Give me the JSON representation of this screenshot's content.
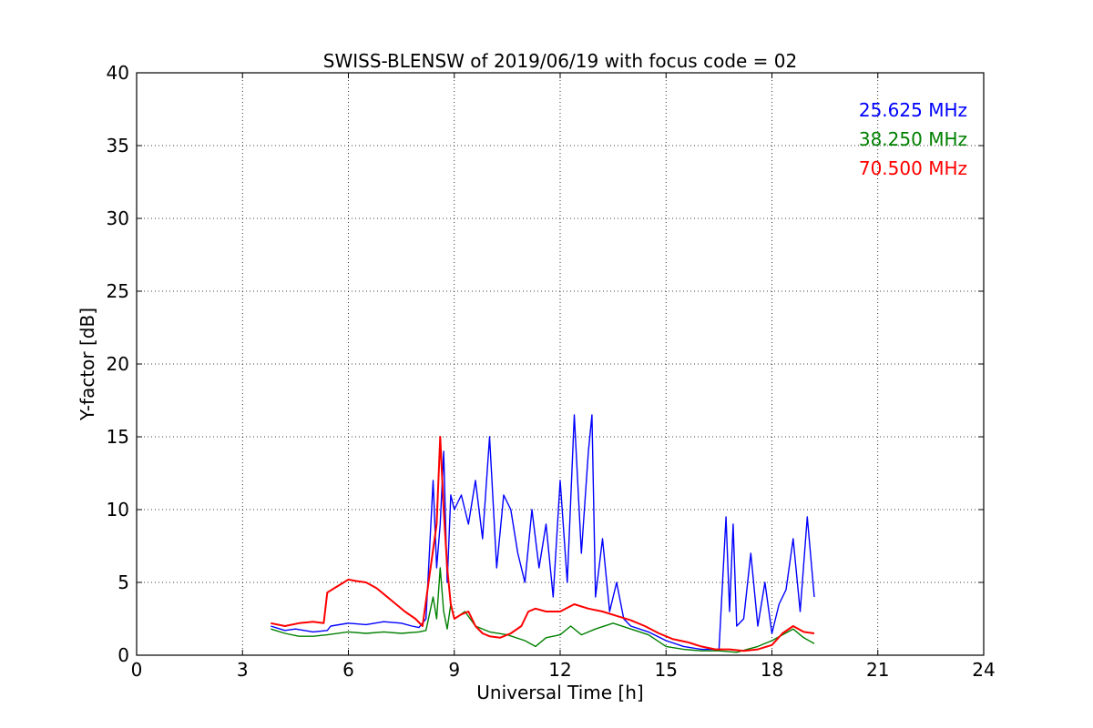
{
  "chart_data": {
    "type": "line",
    "title": "SWISS-BLENSW of 2019/06/19 with focus code = 02",
    "xlabel": "Universal Time [h]",
    "ylabel": "Y-factor [dB]",
    "xlim": [
      0,
      24
    ],
    "ylim": [
      0,
      40
    ],
    "xticks": [
      0,
      3,
      6,
      9,
      12,
      15,
      18,
      21,
      24
    ],
    "xtick_labels": [
      "0",
      "3",
      "6",
      "9",
      "12",
      "15",
      "18",
      "21",
      "24"
    ],
    "yticks": [
      0,
      5,
      10,
      15,
      20,
      25,
      30,
      35,
      40
    ],
    "ytick_labels": [
      "0",
      "5",
      "10",
      "15",
      "20",
      "25",
      "30",
      "35",
      "40"
    ],
    "grid": true,
    "legend_position": "top-right",
    "series": [
      {
        "name": "25.625 MHz",
        "color": "#0000ff",
        "x": [
          3.8,
          4.2,
          4.5,
          5.0,
          5.4,
          5.5,
          6.0,
          6.5,
          7.0,
          7.5,
          7.8,
          8.0,
          8.2,
          8.4,
          8.5,
          8.6,
          8.7,
          8.8,
          8.9,
          9.0,
          9.2,
          9.4,
          9.6,
          9.8,
          10.0,
          10.2,
          10.4,
          10.6,
          10.8,
          11.0,
          11.2,
          11.4,
          11.6,
          11.8,
          12.0,
          12.2,
          12.4,
          12.6,
          12.8,
          12.9,
          13.0,
          13.2,
          13.4,
          13.6,
          13.8,
          14.0,
          14.5,
          15.0,
          15.5,
          16.0,
          16.5,
          16.7,
          16.8,
          16.9,
          17.0,
          17.2,
          17.4,
          17.6,
          17.8,
          18.0,
          18.2,
          18.4,
          18.6,
          18.8,
          19.0,
          19.2
        ],
        "y": [
          2.0,
          1.7,
          1.8,
          1.6,
          1.7,
          2.0,
          2.2,
          2.1,
          2.3,
          2.2,
          2.0,
          1.9,
          2.5,
          12.0,
          6.0,
          9.0,
          14.0,
          5.0,
          11.0,
          10.0,
          11.0,
          9.0,
          12.0,
          8.0,
          15.0,
          6.0,
          11.0,
          10.0,
          7.0,
          5.0,
          10.0,
          6.0,
          9.0,
          4.0,
          12.0,
          5.0,
          16.5,
          7.0,
          14.0,
          16.5,
          4.0,
          8.0,
          3.0,
          5.0,
          2.5,
          2.0,
          1.6,
          1.0,
          0.6,
          0.4,
          0.4,
          9.5,
          3.0,
          9.0,
          2.0,
          2.5,
          7.0,
          2.0,
          5.0,
          1.5,
          3.5,
          4.5,
          8.0,
          3.0,
          9.5,
          4.0
        ]
      },
      {
        "name": "38.250 MHz",
        "color": "#008000",
        "x": [
          3.8,
          4.2,
          4.6,
          5.0,
          5.4,
          6.0,
          6.5,
          7.0,
          7.5,
          8.0,
          8.2,
          8.4,
          8.5,
          8.6,
          8.7,
          8.8,
          8.9,
          9.0,
          9.3,
          9.6,
          10.0,
          10.5,
          11.0,
          11.3,
          11.6,
          12.0,
          12.3,
          12.6,
          13.0,
          13.5,
          14.0,
          14.5,
          15.0,
          15.5,
          16.0,
          16.5,
          17.0,
          17.3,
          17.6,
          18.0,
          18.3,
          18.6,
          18.9,
          19.2
        ],
        "y": [
          1.8,
          1.5,
          1.3,
          1.3,
          1.4,
          1.6,
          1.5,
          1.6,
          1.5,
          1.6,
          1.7,
          4.0,
          2.5,
          6.0,
          3.0,
          1.8,
          3.5,
          2.5,
          3.0,
          2.0,
          1.6,
          1.4,
          1.0,
          0.6,
          1.2,
          1.4,
          2.0,
          1.4,
          1.8,
          2.2,
          1.8,
          1.4,
          0.6,
          0.4,
          0.3,
          0.3,
          0.2,
          0.4,
          0.6,
          1.0,
          1.4,
          1.8,
          1.2,
          0.8
        ]
      },
      {
        "name": "70.500 MHz",
        "color": "#ff0000",
        "x": [
          3.8,
          4.2,
          4.6,
          5.0,
          5.3,
          5.4,
          5.6,
          5.8,
          6.0,
          6.2,
          6.5,
          6.8,
          7.0,
          7.3,
          7.6,
          7.9,
          8.1,
          8.3,
          8.5,
          8.6,
          8.7,
          8.8,
          8.9,
          9.0,
          9.2,
          9.4,
          9.6,
          9.8,
          10.0,
          10.3,
          10.6,
          10.9,
          11.1,
          11.3,
          11.6,
          12.0,
          12.4,
          12.8,
          13.2,
          13.6,
          14.0,
          14.4,
          14.8,
          15.2,
          15.6,
          16.0,
          16.4,
          16.8,
          17.2,
          17.6,
          18.0,
          18.3,
          18.6,
          18.9,
          19.2
        ],
        "y": [
          2.2,
          2.0,
          2.2,
          2.3,
          2.2,
          4.3,
          4.6,
          4.9,
          5.2,
          5.1,
          5.0,
          4.6,
          4.2,
          3.6,
          3.0,
          2.5,
          2.0,
          5.5,
          9.0,
          15.0,
          10.0,
          6.0,
          3.5,
          2.5,
          2.8,
          3.0,
          2.0,
          1.5,
          1.3,
          1.2,
          1.5,
          2.0,
          3.0,
          3.2,
          3.0,
          3.0,
          3.5,
          3.2,
          3.0,
          2.7,
          2.4,
          2.0,
          1.5,
          1.1,
          0.9,
          0.6,
          0.4,
          0.4,
          0.3,
          0.4,
          0.7,
          1.5,
          2.0,
          1.6,
          1.5
        ]
      }
    ]
  }
}
